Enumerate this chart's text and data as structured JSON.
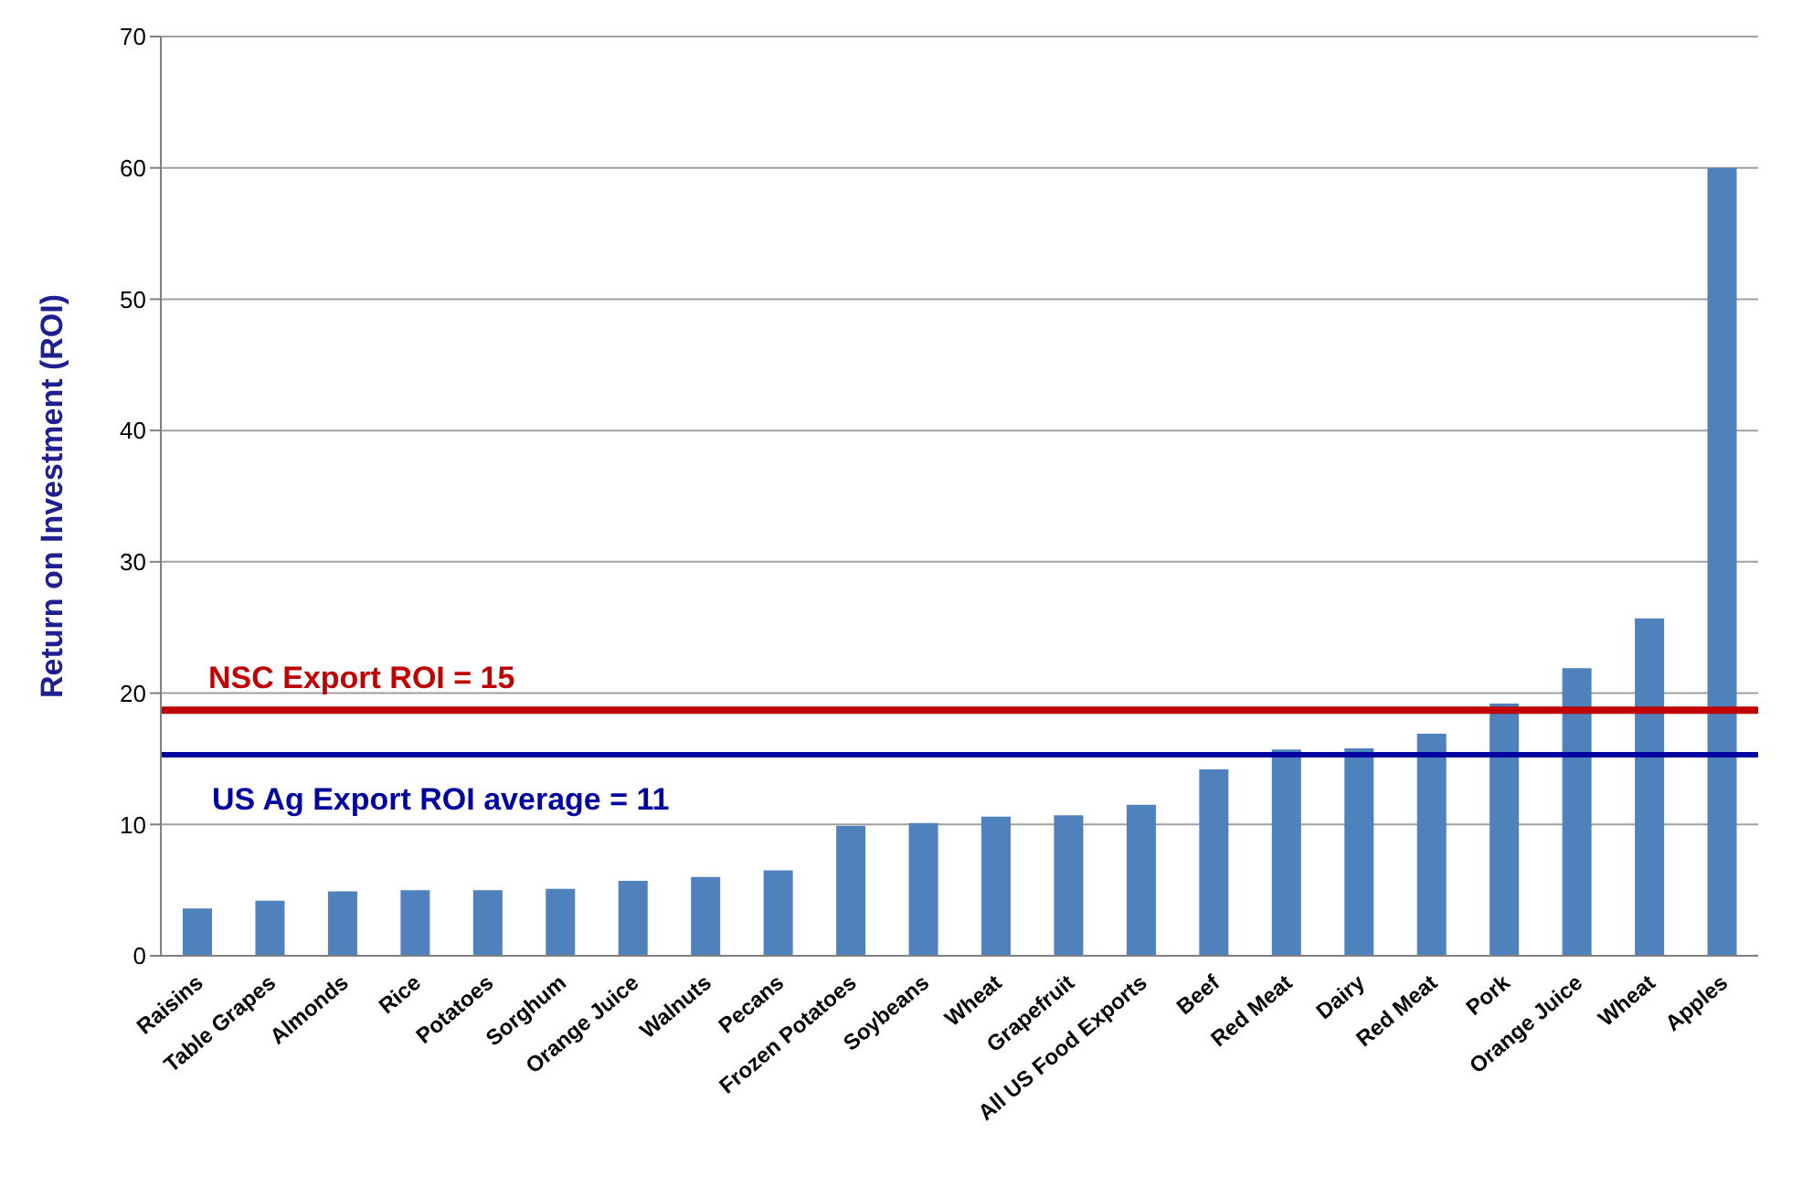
{
  "chart_data": {
    "type": "bar",
    "ylabel": "Return on Investment (ROI)",
    "categories": [
      "Raisins",
      "Table Grapes",
      "Almonds",
      "Rice",
      "Potatoes",
      "Sorghum",
      "Orange Juice",
      "Walnuts",
      "Pecans",
      "Frozen Potatoes",
      "Soybeans",
      "Wheat",
      "Grapefruit",
      "All US Food Exports",
      "Beef",
      "Red Meat",
      "Dairy",
      "Red Meat",
      "Pork",
      "Orange Juice",
      "Wheat",
      "Apples"
    ],
    "values": [
      3.6,
      4.2,
      4.9,
      5.0,
      5.0,
      5.1,
      5.7,
      6.0,
      6.5,
      9.9,
      10.1,
      10.6,
      10.7,
      11.5,
      14.2,
      15.7,
      15.8,
      16.9,
      19.2,
      21.9,
      25.7,
      60
    ],
    "color": "#4f81bd",
    "ylim": [
      0,
      70
    ],
    "yticks": [
      0,
      10,
      20,
      30,
      40,
      50,
      60,
      70
    ],
    "grid": "y",
    "ref_lines": [
      {
        "axis": "y",
        "value": 18.7,
        "color": "#c00000"
      },
      {
        "axis": "y",
        "value": 15.3,
        "color": "#0000a0"
      }
    ],
    "annotations": [
      "NSC Export ROI = 15",
      "US Ag Export ROI average = 11"
    ]
  }
}
